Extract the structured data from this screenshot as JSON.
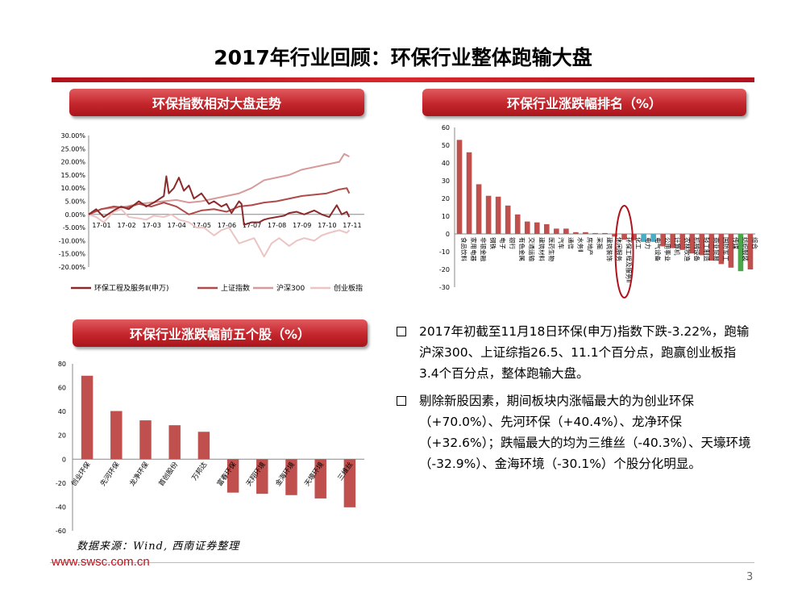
{
  "page": {
    "title": "2017年行业回顾：环保行业整体跑输大盘",
    "source": "数据来源：Wind, 西南证券整理",
    "website": "www.swsc.com.cn",
    "page_number": "3",
    "colors": {
      "brand_red": "#c4262c",
      "bar_red": "#c0504d",
      "highlight_blue": "#4bacc6",
      "highlight_green": "#4ca64c"
    }
  },
  "headers": {
    "line_chart": "环保指数相对大盘走势",
    "ranking_chart": "环保行业涨跌幅排名（%）",
    "stocks_chart": "环保行业涨跌幅前五个股（%）"
  },
  "bullets": [
    "2017年初截至11月18日环保(申万)指数下跌-3.22%，跑输沪深300、上证综指26.5、11.1个百分点，跑赢创业板指3.4个百分点，整体跑输大盘。",
    "剔除新股因素，期间板块内涨幅最大的为创业环保（+70.0%）、先河环保（+40.4%）、龙净环保（+32.6%）；跌幅最大的均为三维丝（-40.3%）、天壕环境 （-32.9%）、金海环境（-30.1%）个股分化明显。"
  ],
  "chart_data": [
    {
      "type": "line",
      "title": "环保指数相对大盘走势",
      "x_ticks": [
        "17-01",
        "17-02",
        "17-03",
        "17-04",
        "17-05",
        "17-06",
        "17-07",
        "17-08",
        "17-09",
        "17-10",
        "17-11"
      ],
      "y_ticks": [
        "30.00%",
        "25.00%",
        "20.00%",
        "15.00%",
        "10.00%",
        "5.00%",
        "0.00%",
        "-5.00%",
        "-10.00%",
        "-15.00%",
        "-20.00%"
      ],
      "ylim": [
        -20,
        30
      ],
      "series": [
        {
          "name": "环保工程及服务Ⅱ(申万)",
          "color": "#8b2a2a",
          "x": [
            0,
            0.3,
            0.6,
            1,
            1.3,
            1.6,
            2,
            2.3,
            2.6,
            3,
            3.1,
            3.2,
            3.4,
            3.6,
            3.8,
            4,
            4.2,
            4.5,
            4.8,
            5,
            5.3,
            5.5,
            5.7,
            5.9,
            6,
            6.1,
            6.2,
            6.5,
            6.8,
            7,
            7.2,
            7.5,
            7.8,
            8,
            8.3,
            8.6,
            9,
            9.3,
            9.6,
            9.9,
            10.1,
            10.3,
            10.4
          ],
          "values": [
            0,
            2,
            -1,
            1.5,
            3,
            2,
            5,
            3,
            4.5,
            7,
            14.5,
            8,
            10,
            14,
            9,
            11,
            6,
            8,
            4,
            5,
            3,
            4,
            0.5,
            3.5,
            5,
            4,
            -4,
            -3,
            -3,
            -2,
            -1.5,
            -1,
            -0.5,
            0.5,
            1,
            0,
            1.5,
            0,
            -1,
            3.5,
            0,
            1,
            -1
          ]
        },
        {
          "name": "上证指数",
          "color": "#b04a4a",
          "x": [
            0,
            0.5,
            1,
            1.5,
            2,
            2.5,
            3,
            3.5,
            4,
            4.5,
            5,
            5.5,
            6,
            6.5,
            7,
            7.5,
            8,
            8.5,
            9,
            9.5,
            10,
            10.3,
            10.4
          ],
          "values": [
            0,
            2,
            3,
            2.5,
            4,
            3,
            4.5,
            3,
            0,
            1.5,
            2,
            1,
            3,
            3.5,
            4.5,
            5,
            6,
            7,
            7.5,
            8,
            9.5,
            10,
            8
          ]
        },
        {
          "name": "沪深300",
          "color": "#d69a9a",
          "x": [
            0,
            0.5,
            1,
            1.5,
            2,
            2.5,
            3,
            3.5,
            4,
            4.5,
            5,
            5.5,
            6,
            6.5,
            7,
            7.5,
            8,
            8.5,
            9,
            9.5,
            10,
            10.2,
            10.4
          ],
          "values": [
            0,
            2,
            2.5,
            3,
            4,
            4.5,
            5,
            5.5,
            4.5,
            5,
            6,
            7,
            8,
            10,
            13,
            14,
            15,
            17,
            18,
            19,
            20,
            23,
            22
          ]
        },
        {
          "name": "创业板指",
          "color": "#ecc4c4",
          "x": [
            0,
            0.3,
            0.6,
            1,
            1.3,
            1.6,
            2,
            2.3,
            2.6,
            3,
            3.3,
            3.6,
            4,
            4.3,
            4.6,
            5,
            5.3,
            5.6,
            6,
            6.3,
            6.6,
            7,
            7.3,
            7.6,
            8,
            8.3,
            8.6,
            9,
            9.3,
            9.6,
            10,
            10.3,
            10.4
          ],
          "values": [
            0,
            -1,
            -3,
            1,
            2,
            -1,
            -1.5,
            -2,
            -0.5,
            -1,
            0,
            -2,
            -3,
            -5,
            -5,
            -8,
            -6,
            -5,
            -11,
            -10,
            -9,
            -16,
            -11,
            -9,
            -12,
            -10,
            -9,
            -10,
            -8,
            -7,
            -6,
            -7,
            -6
          ]
        }
      ]
    },
    {
      "type": "bar",
      "title": "环保行业涨跌幅排名（%）",
      "ylim": [
        -30,
        60
      ],
      "y_ticks": [
        "60",
        "50",
        "40",
        "30",
        "20",
        "10",
        "0",
        "-10",
        "-20",
        "-30"
      ],
      "categories": [
        "食品饮料",
        "家用电器",
        "非银金融",
        "钢铁",
        "电子",
        "银行",
        "有色金属",
        "交通运输",
        "建筑材料",
        "医药生物",
        "汽车",
        "通信",
        "水务Ⅱ",
        "房地产",
        "采掘",
        "建筑装饰",
        "休闲服务",
        "环保工程及服务Ⅱ",
        "化工",
        "电力",
        "电气设备",
        "公用事业",
        "计算机",
        "农林牧渔",
        "机械设备",
        "轻工制造",
        "商业贸易",
        "国防军工",
        "传媒",
        "纺织服装",
        "综合"
      ],
      "values": [
        53,
        46,
        28,
        21.5,
        21,
        16,
        11,
        7,
        6.5,
        5.5,
        3,
        3,
        1,
        1,
        0.5,
        0.5,
        -1.5,
        -3.2,
        -3.5,
        -4.5,
        -4.5,
        -7,
        -8,
        -9,
        -11,
        -12,
        -15,
        -17,
        -19,
        -21,
        -20
      ],
      "highlight_index": 17
    },
    {
      "type": "bar",
      "title": "环保行业涨跌幅前五个股（%）",
      "ylim": [
        -60,
        80
      ],
      "y_ticks": [
        "80",
        "60",
        "40",
        "20",
        "0",
        "-20",
        "-40",
        "-60"
      ],
      "categories": [
        "创业环保",
        "先河环保",
        "龙净环保",
        "首创股份",
        "万邦达",
        "富春环保",
        "天翔环境",
        "金海环境",
        "天壕环境",
        "三维丝"
      ],
      "values": [
        70.0,
        40.4,
        32.6,
        28.5,
        23,
        -28,
        -29,
        -30.1,
        -32.9,
        -40.3
      ]
    }
  ]
}
